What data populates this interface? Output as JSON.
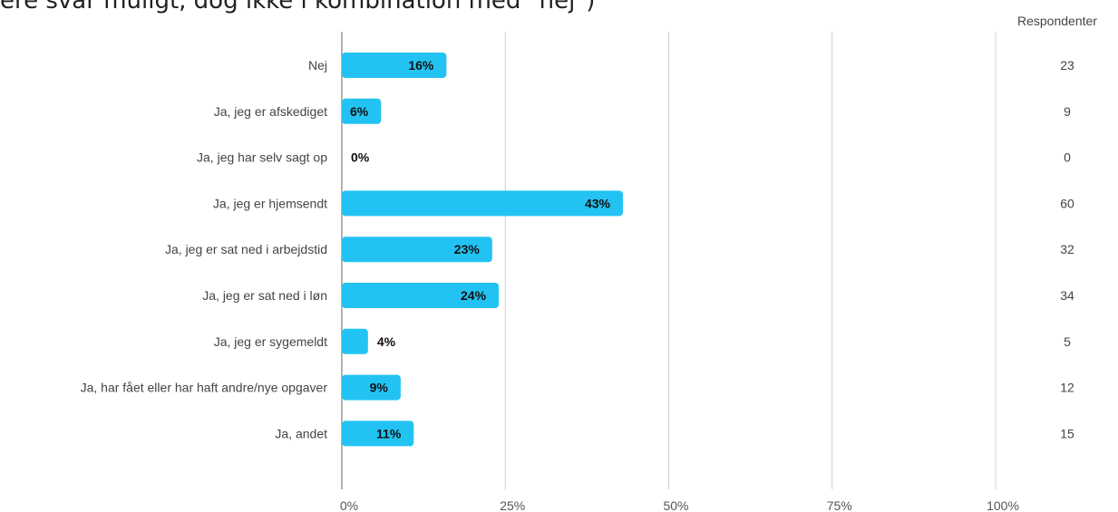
{
  "header": {
    "title": "ere svar muligt, dog ikke i kombination med \"nej\")",
    "respondents_label": "Respondenter"
  },
  "chart_data": {
    "type": "bar",
    "orientation": "horizontal",
    "title": "ere svar muligt, dog ikke i kombination med \"nej\")",
    "categories": [
      "Nej",
      "Ja, jeg er afskediget",
      "Ja, jeg har selv sagt op",
      "Ja, jeg er hjemsendt",
      "Ja, jeg er sat ned i arbejdstid",
      "Ja, jeg er sat ned i løn",
      "Ja, jeg er sygemeldt",
      "Ja, har fået eller har haft andre/nye opgaver",
      "Ja, andet"
    ],
    "values": [
      16,
      6,
      0,
      43,
      23,
      24,
      4,
      9,
      11
    ],
    "value_labels": [
      "16%",
      "6%",
      "0%",
      "43%",
      "23%",
      "24%",
      "4%",
      "9%",
      "11%"
    ],
    "respondents": [
      "23",
      "9",
      "0",
      "60",
      "32",
      "34",
      "5",
      "12",
      "15"
    ],
    "xlim": [
      0,
      100
    ],
    "xticks": [
      "0%",
      "25%",
      "50%",
      "75%",
      "100%"
    ],
    "grid": true,
    "bar_color": "#22c3f3"
  }
}
